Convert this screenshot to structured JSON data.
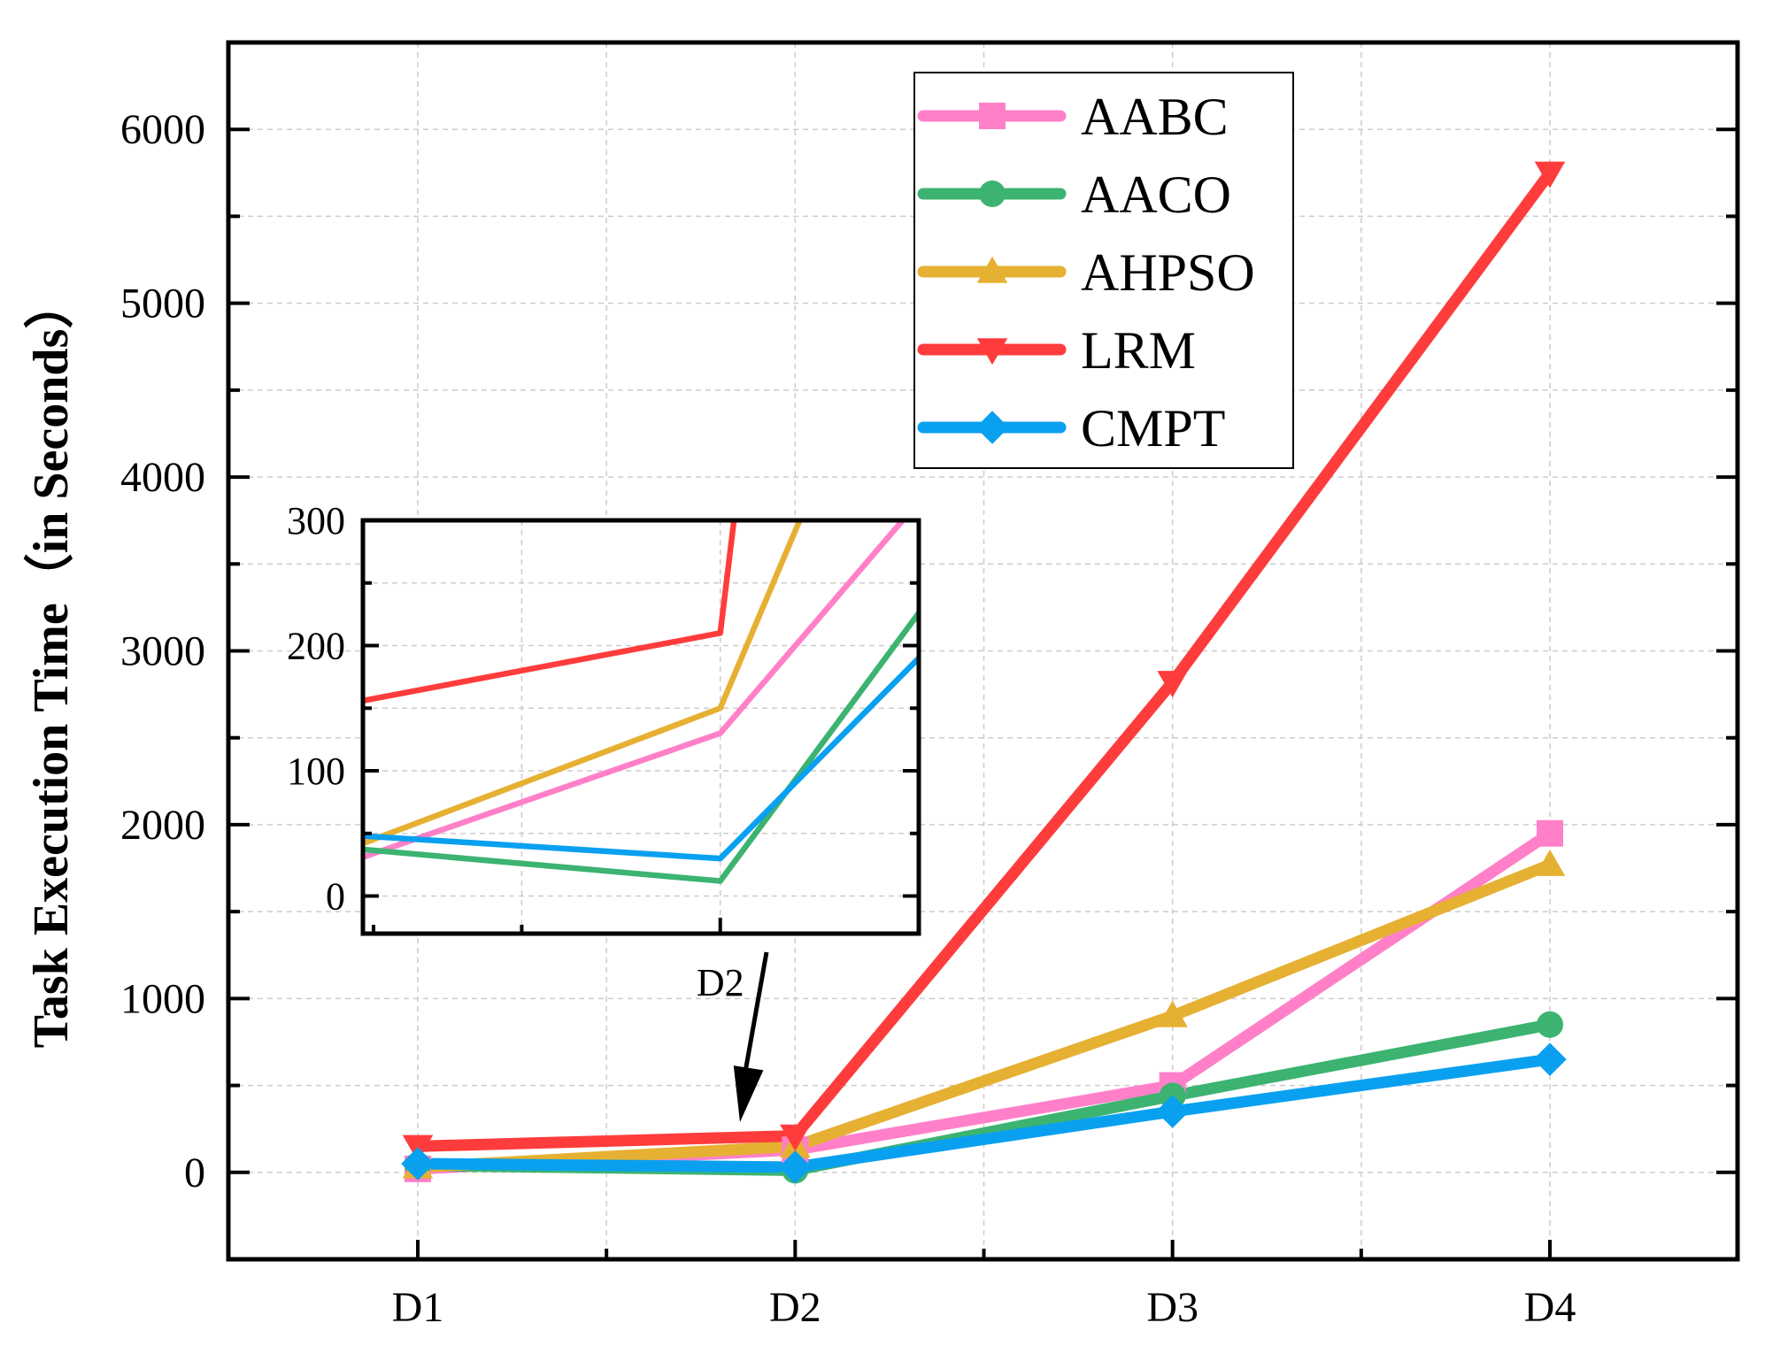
{
  "chart_data": {
    "type": "line",
    "title": "",
    "xlabel": "",
    "ylabel": "Task Execution Time（in Seconds）",
    "categories": [
      "D1",
      "D2",
      "D3",
      "D4"
    ],
    "ylim": [
      -500,
      6500
    ],
    "yticks": [
      0,
      1000,
      2000,
      3000,
      4000,
      5000,
      6000
    ],
    "grid": true,
    "legend_position": "top-right",
    "series": [
      {
        "name": "AABC",
        "color": "#ff80c8",
        "marker": "square",
        "values": [
          20,
          130,
          500,
          1950
        ]
      },
      {
        "name": "AACO",
        "color": "#3cb371",
        "marker": "circle",
        "values": [
          40,
          12,
          440,
          850
        ]
      },
      {
        "name": "AHPSO",
        "color": "#e6b032",
        "marker": "triangle-up",
        "values": [
          30,
          150,
          900,
          1770
        ]
      },
      {
        "name": "LRM",
        "color": "#ff3c3c",
        "marker": "triangle-down",
        "values": [
          150,
          210,
          2820,
          5750
        ]
      },
      {
        "name": "CMPT",
        "color": "#0aa0f0",
        "marker": "diamond",
        "values": [
          50,
          30,
          350,
          650
        ]
      }
    ],
    "inset": {
      "category": "D2",
      "xlim": [
        1.1,
        2.5
      ],
      "ylim": [
        -30,
        300
      ],
      "yticks": [
        0,
        100,
        200,
        300
      ],
      "annotation": "arrow pointing from inset to D2"
    }
  }
}
